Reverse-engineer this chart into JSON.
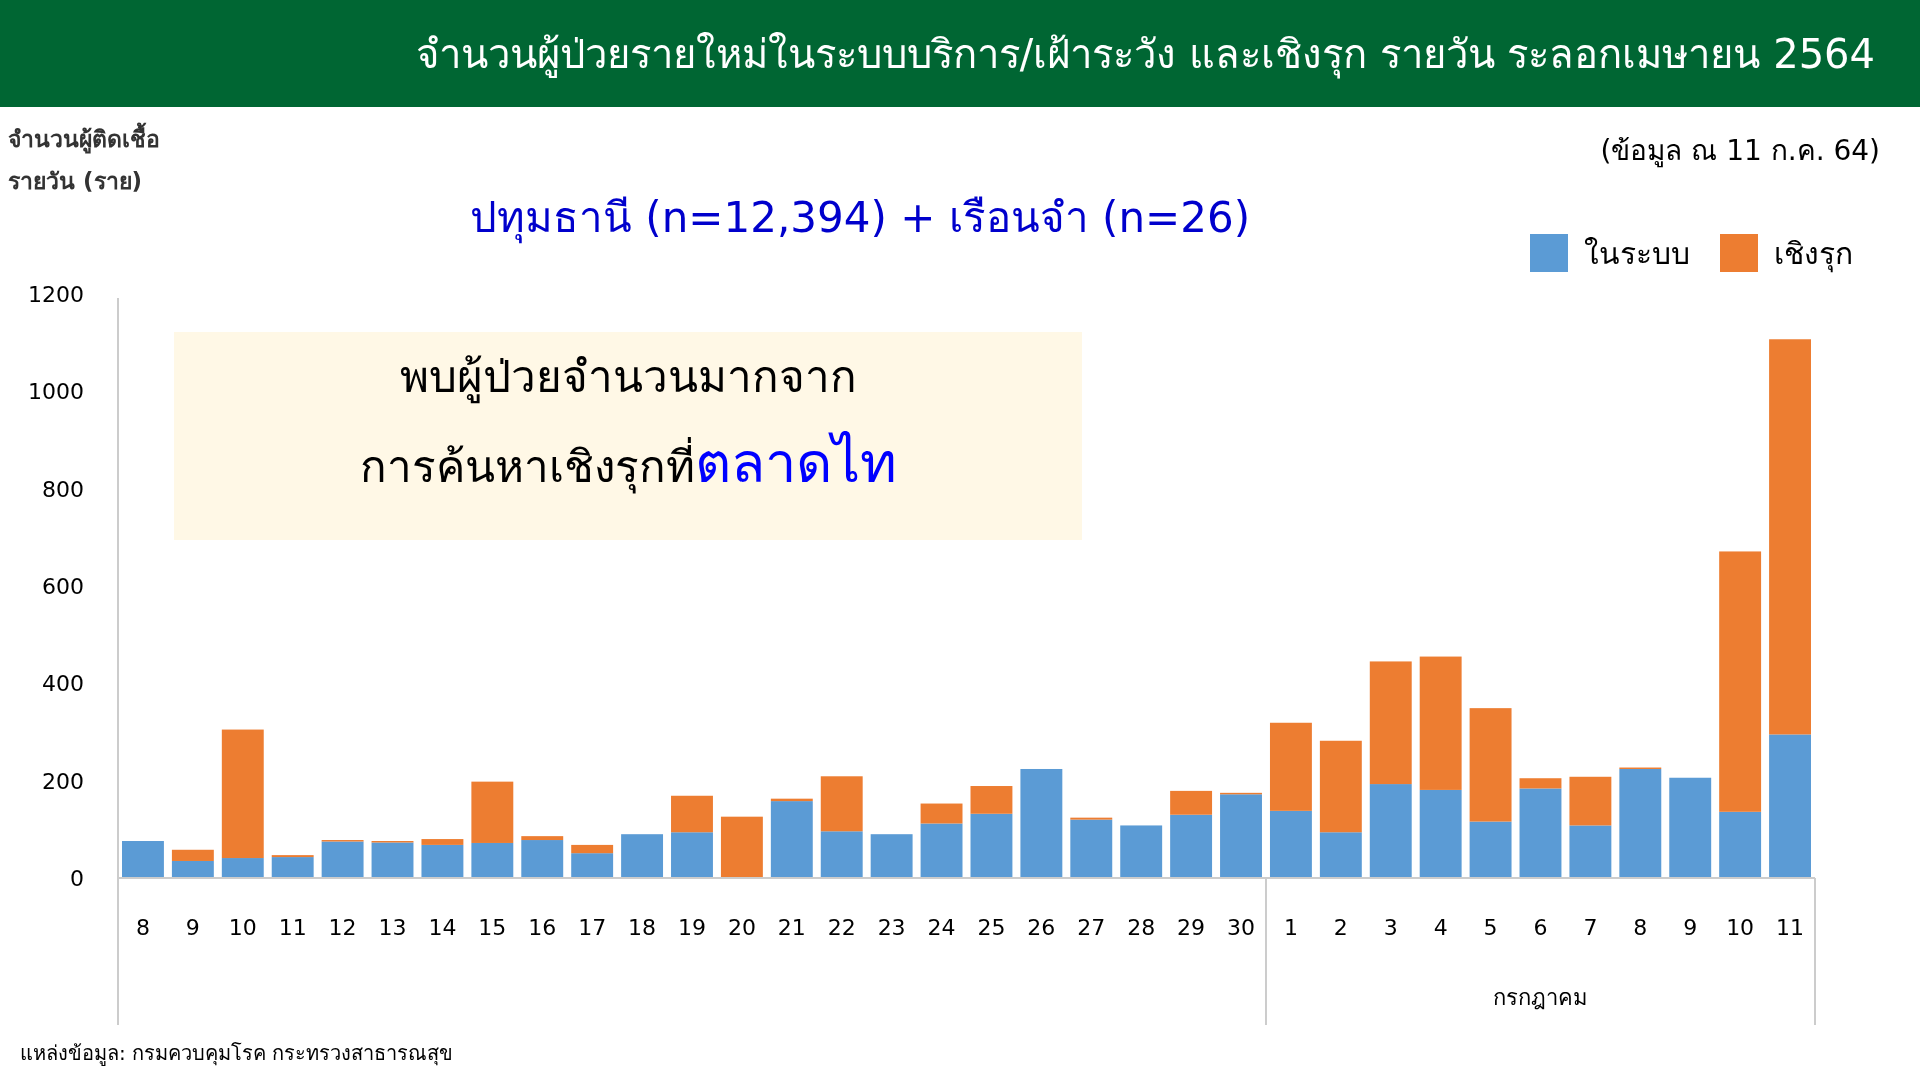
{
  "chart_data": {
    "type": "bar",
    "stacked": true,
    "title": "จำนวนผู้ป่วยรายใหม่ในระบบบริการ/เฝ้าระวัง และเชิงรุก รายวัน  ระลอกเมษายน 2564",
    "subtitle": "ปทุมธานี (n=12,394) + เรือนจำ (n=26)",
    "ylabel": "จำนวนผู้ติดเชื้อรายวัน (ราย)",
    "categories": [
      "8",
      "9",
      "10",
      "11",
      "12",
      "13",
      "14",
      "15",
      "16",
      "17",
      "18",
      "19",
      "20",
      "21",
      "22",
      "23",
      "24",
      "25",
      "26",
      "27",
      "28",
      "29",
      "30",
      "1",
      "2",
      "3",
      "4",
      "5",
      "6",
      "7",
      "8",
      "9",
      "10",
      "11"
    ],
    "series": [
      {
        "name": "ในระบบ",
        "color": "#5b9bd5",
        "values": [
          76,
          35,
          41,
          43,
          75,
          73,
          68,
          72,
          78,
          51,
          90,
          94,
          0,
          158,
          96,
          90,
          112,
          132,
          224,
          120,
          108,
          130,
          172,
          138,
          94,
          193,
          181,
          116,
          184,
          108,
          224,
          206,
          136,
          295
        ]
      },
      {
        "name": "เชิงรุก",
        "color": "#ed7d31",
        "values": [
          0,
          23,
          264,
          4,
          3,
          3,
          12,
          126,
          8,
          17,
          0,
          75,
          126,
          5,
          113,
          0,
          41,
          57,
          0,
          4,
          0,
          49,
          3,
          181,
          188,
          252,
          274,
          233,
          21,
          100,
          3,
          0,
          535,
          812
        ]
      }
    ],
    "ylim": [
      0,
      1200
    ],
    "yticks": [
      0,
      200,
      400,
      600,
      800,
      1000,
      1200
    ],
    "grid": false,
    "legend": "top right",
    "annotations": [
      "พบผู้ป่วยจำนวนมากจาก",
      "การค้นหาเชิงรุกที่",
      "ตลาดไท",
      "(ข้อมูล ณ 11 ก.ค. 64)",
      "กรกฎาคม",
      "แหล่งข้อมูล: กรมควบคุมโรค กระทรวงสาธารณสุข"
    ]
  }
}
